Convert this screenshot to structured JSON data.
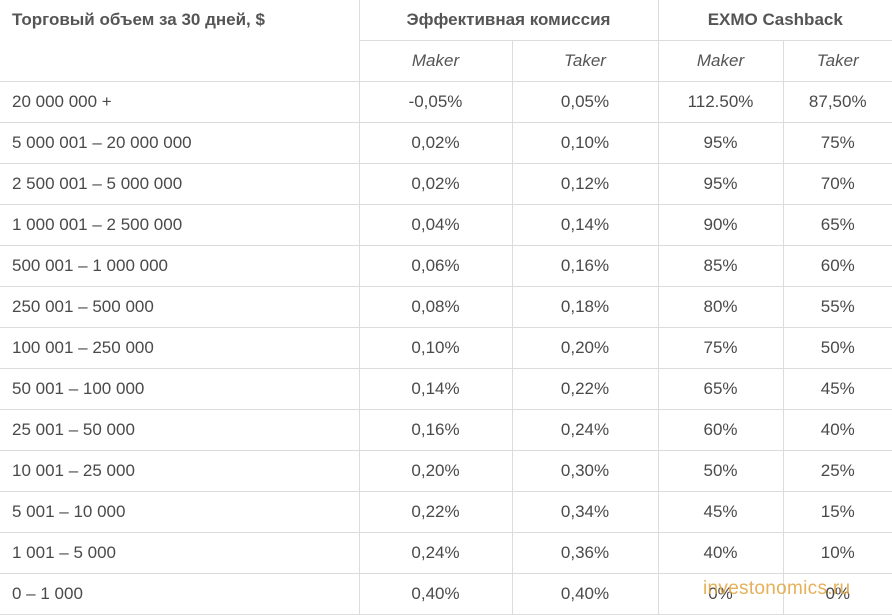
{
  "table": {
    "header": {
      "volume": "Торговый объем за 30 дней, $",
      "effective_fee": "Эффективная комиссия",
      "cashback": "EXMO Cashback",
      "sub": [
        "Maker",
        "Taker",
        "Maker",
        "Taker"
      ]
    },
    "rows": [
      {
        "volume": "20 000 000 +",
        "fee_maker": "-0,05%",
        "fee_taker": "0,05%",
        "cb_maker": "112.50%",
        "cb_taker": "87,50%"
      },
      {
        "volume": "5 000 001 – 20 000 000",
        "fee_maker": "0,02%",
        "fee_taker": "0,10%",
        "cb_maker": "95%",
        "cb_taker": "75%"
      },
      {
        "volume": "2 500 001 – 5 000 000",
        "fee_maker": "0,02%",
        "fee_taker": "0,12%",
        "cb_maker": "95%",
        "cb_taker": "70%"
      },
      {
        "volume": "1 000 001 – 2 500 000",
        "fee_maker": "0,04%",
        "fee_taker": "0,14%",
        "cb_maker": "90%",
        "cb_taker": "65%"
      },
      {
        "volume": "500 001 – 1 000 000",
        "fee_maker": "0,06%",
        "fee_taker": "0,16%",
        "cb_maker": "85%",
        "cb_taker": "60%"
      },
      {
        "volume": "250 001 – 500 000",
        "fee_maker": "0,08%",
        "fee_taker": "0,18%",
        "cb_maker": "80%",
        "cb_taker": "55%"
      },
      {
        "volume": "100 001 – 250 000",
        "fee_maker": "0,10%",
        "fee_taker": "0,20%",
        "cb_maker": "75%",
        "cb_taker": "50%"
      },
      {
        "volume": "50 001 – 100 000",
        "fee_maker": "0,14%",
        "fee_taker": "0,22%",
        "cb_maker": "65%",
        "cb_taker": "45%"
      },
      {
        "volume": "25 001 – 50 000",
        "fee_maker": "0,16%",
        "fee_taker": "0,24%",
        "cb_maker": "60%",
        "cb_taker": "40%"
      },
      {
        "volume": "10 001 – 25 000",
        "fee_maker": "0,20%",
        "fee_taker": "0,30%",
        "cb_maker": "50%",
        "cb_taker": "25%"
      },
      {
        "volume": "5 001 – 10 000",
        "fee_maker": "0,22%",
        "fee_taker": "0,34%",
        "cb_maker": "45%",
        "cb_taker": "15%"
      },
      {
        "volume": "1 001 – 5 000",
        "fee_maker": "0,24%",
        "fee_taker": "0,36%",
        "cb_maker": "40%",
        "cb_taker": "10%"
      },
      {
        "volume": "0 – 1 000",
        "fee_maker": "0,40%",
        "fee_taker": "0,40%",
        "cb_maker": "0%",
        "cb_taker": "0%"
      }
    ]
  },
  "watermark": "investonomics.ru"
}
